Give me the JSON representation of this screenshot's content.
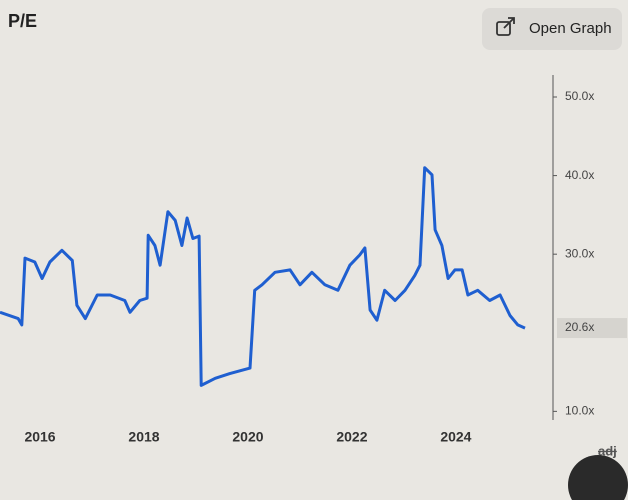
{
  "chart_data": {
    "type": "line",
    "title": "P/E",
    "x": [
      2015.23,
      2015.58,
      2015.65,
      2015.71,
      2015.9,
      2016.04,
      2016.19,
      2016.42,
      2016.62,
      2016.71,
      2016.87,
      2017.1,
      2017.35,
      2017.63,
      2017.73,
      2017.92,
      2018.06,
      2018.08,
      2018.21,
      2018.31,
      2018.46,
      2018.6,
      2018.73,
      2018.83,
      2018.94,
      2019.06,
      2019.1,
      2019.37,
      2019.65,
      2020.04,
      2020.08,
      2020.13,
      2020.27,
      2020.52,
      2020.81,
      2021.0,
      2021.23,
      2021.48,
      2021.73,
      2021.96,
      2022.15,
      2022.25,
      2022.35,
      2022.48,
      2022.63,
      2022.83,
      2023.02,
      2023.21,
      2023.31,
      2023.4,
      2023.54,
      2023.6,
      2023.73,
      2023.85,
      2023.98,
      2024.12,
      2024.23,
      2024.42,
      2024.65,
      2024.85,
      2025.04,
      2025.19,
      2025.33
    ],
    "series": [
      {
        "color": "#1f5fd0",
        "values": [
          22.6,
          21.8,
          21.0,
          29.5,
          29.0,
          26.9,
          29.0,
          30.5,
          29.2,
          23.5,
          21.8,
          24.8,
          24.8,
          24.1,
          22.6,
          24.1,
          24.4,
          32.4,
          31.1,
          28.6,
          35.4,
          34.3,
          31.1,
          34.6,
          32.0,
          32.3,
          13.3,
          14.2,
          14.8,
          15.5,
          19.9,
          25.4,
          26.1,
          27.7,
          28.0,
          26.1,
          27.7,
          26.1,
          25.4,
          28.6,
          29.9,
          30.8,
          22.9,
          21.6,
          25.4,
          24.1,
          25.4,
          27.3,
          28.6,
          41.0,
          40.1,
          33.1,
          31.1,
          26.9,
          28.0,
          28.0,
          24.8,
          25.4,
          24.1,
          24.8,
          22.2,
          21.0,
          20.6
        ]
      }
    ],
    "xlim": [
      2015.23,
      2025.81
    ],
    "xticks": [
      2016,
      2018,
      2020,
      2022,
      2024
    ],
    "ylim": [
      8.9,
      52.8
    ],
    "yticks": [
      {
        "value": 10,
        "label": "10.0x"
      },
      {
        "value": 30,
        "label": "30.0x"
      },
      {
        "value": 40,
        "label": "40.0x"
      },
      {
        "value": 50,
        "label": "50.0x"
      }
    ],
    "current_value": {
      "value": 20.6,
      "label": "20.6x"
    },
    "button": "Open Graph",
    "toggle": "adj"
  }
}
